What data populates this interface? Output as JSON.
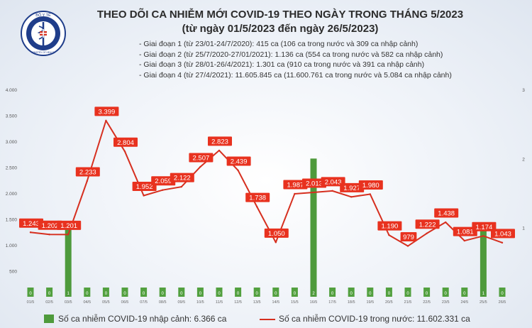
{
  "header": {
    "title_line1": "THEO DÕI CA NHIỄM MỚI COVID-19 THEO NGÀY TRONG THÁNG 5/2023",
    "title_line2": "(từ ngày 01/5/2023 đến ngày 26/5/2023)",
    "logo_text": "BỘ Y TẾ",
    "logo_subtext": "MINISTRY OF HEALTH"
  },
  "phases": [
    "- Giai đoạn 1 (từ 23/01-24/7/2020): 415 ca (106 ca trong nước và 309 ca nhập cảnh)",
    "- Giai đoạn 2 (từ 25/7/2020-27/01/2021): 1.136 ca (554 ca trong nước và 582 ca nhập cảnh)",
    "- Giai đoạn 3 (từ 28/01-26/4/2021): 1.301 ca (910 ca trong nước và 391 ca nhập cảnh)",
    "- Giai đoạn 4 (từ 27/4/2021): 11.605.845 ca (11.600.761 ca trong nước và 5.084 ca nhập cảnh)"
  ],
  "legend": {
    "bar_label": "Số ca nhiễm COVID-19 nhập cảnh: 6.366 ca",
    "line_label": "Số ca nhiễm COVID-19 trong nước: 11.602.331 ca"
  },
  "colors": {
    "bar": "#4e9a3c",
    "line": "#d62f1f",
    "label_bg": "#e8321f"
  },
  "chart_data": {
    "type": "bar+line",
    "categories": [
      "01/5",
      "02/5",
      "03/5",
      "04/5",
      "05/5",
      "06/5",
      "07/5",
      "08/5",
      "09/5",
      "10/5",
      "11/5",
      "12/5",
      "13/5",
      "14/5",
      "15/5",
      "16/5",
      "17/5",
      "18/5",
      "19/5",
      "20/5",
      "21/5",
      "22/5",
      "23/5",
      "24/5",
      "25/5",
      "26/5"
    ],
    "series": [
      {
        "type": "bar",
        "axis": "right",
        "values": [
          0,
          0,
          1,
          0,
          0,
          0,
          0,
          0,
          0,
          0,
          0,
          0,
          0,
          0,
          0,
          2,
          0,
          0,
          0,
          0,
          0,
          0,
          0,
          0,
          1,
          0
        ],
        "labels": [
          "0",
          "0",
          "1",
          "0",
          "0",
          "0",
          "0",
          "0",
          "0",
          "0",
          "0",
          "0",
          "0",
          "0",
          "0",
          "2",
          "0",
          "0",
          "0",
          "0",
          "0",
          "0",
          "0",
          "0",
          "1",
          "0"
        ]
      },
      {
        "type": "line",
        "axis": "left",
        "values": [
          1243,
          1202,
          1201,
          2233,
          3399,
          2804,
          1952,
          2059,
          2122,
          2507,
          2823,
          2439,
          1738,
          1050,
          1987,
          2013,
          2043,
          1927,
          1980,
          1190,
          979,
          1222,
          1438,
          1081,
          1174,
          1043
        ],
        "labels": [
          "1.243",
          "1.202",
          "1.201",
          "2.233",
          "3.399",
          "2.804",
          "1.952",
          "2.059",
          "2.122",
          "2.507",
          "2.823",
          "2.439",
          "1.738",
          "1.050",
          "1.987",
          "2.013",
          "2.043",
          "1.927",
          "1.980",
          "1.190",
          "979",
          "1.222",
          "1.438",
          "1.081",
          "1.174",
          "1.043"
        ]
      }
    ],
    "left_axis": {
      "ylim": [
        0,
        4000
      ],
      "ticks": [
        "",
        "500",
        "1.000",
        "1.500",
        "2.000",
        "2.500",
        "3.000",
        "3.500",
        "4.000"
      ]
    },
    "right_axis": {
      "ylim": [
        0,
        3
      ],
      "ticks": [
        "",
        "1",
        "2",
        "3"
      ]
    },
    "grid": false
  }
}
